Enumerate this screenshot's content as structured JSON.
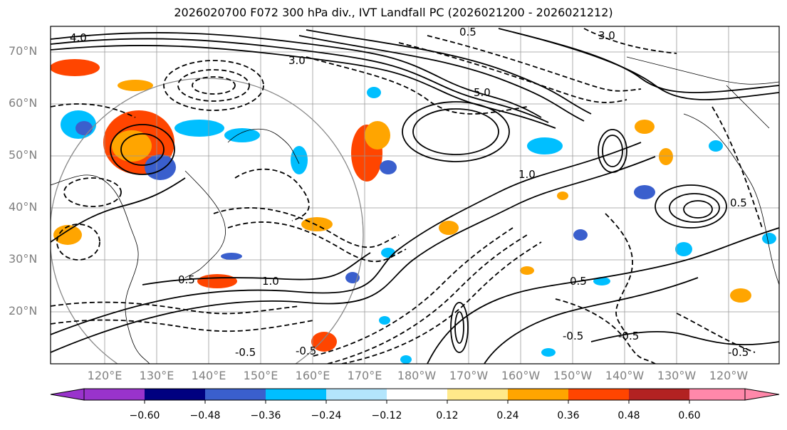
{
  "title": "2026020700 F072 300 hPa div., IVT Landfall PC (2026021200 - 2026021212)",
  "lat_labels": [
    "70°N",
    "60°N",
    "50°N",
    "40°N",
    "30°N",
    "20°N"
  ],
  "lon_labels": [
    "120°E",
    "130°E",
    "140°E",
    "150°E",
    "160°E",
    "170°E",
    "180°W",
    "170°W",
    "160°W",
    "150°W",
    "140°W",
    "130°W",
    "120°W"
  ],
  "contour_labels": [
    "4.0",
    "3.0",
    "5.0",
    "3.0",
    "0.5",
    "1.0",
    "0.5",
    "1.0",
    "0.5",
    "0.5",
    "-0.5",
    "-0.5",
    "-0.5",
    "-0.5",
    "-0.5"
  ],
  "colorbar": {
    "colors": [
      "#9933cc",
      "#000080",
      "#3a5fcd",
      "#00bfff",
      "#b3e5fc",
      "#ffffff",
      "#ffe98a",
      "#ffa500",
      "#ff4500",
      "#b22222",
      "#ff88aa"
    ],
    "tick_labels": [
      "−0.60",
      "−0.48",
      "−0.36",
      "−0.24",
      "−0.12",
      "0.12",
      "0.24",
      "0.36",
      "0.48",
      "0.60"
    ]
  }
}
